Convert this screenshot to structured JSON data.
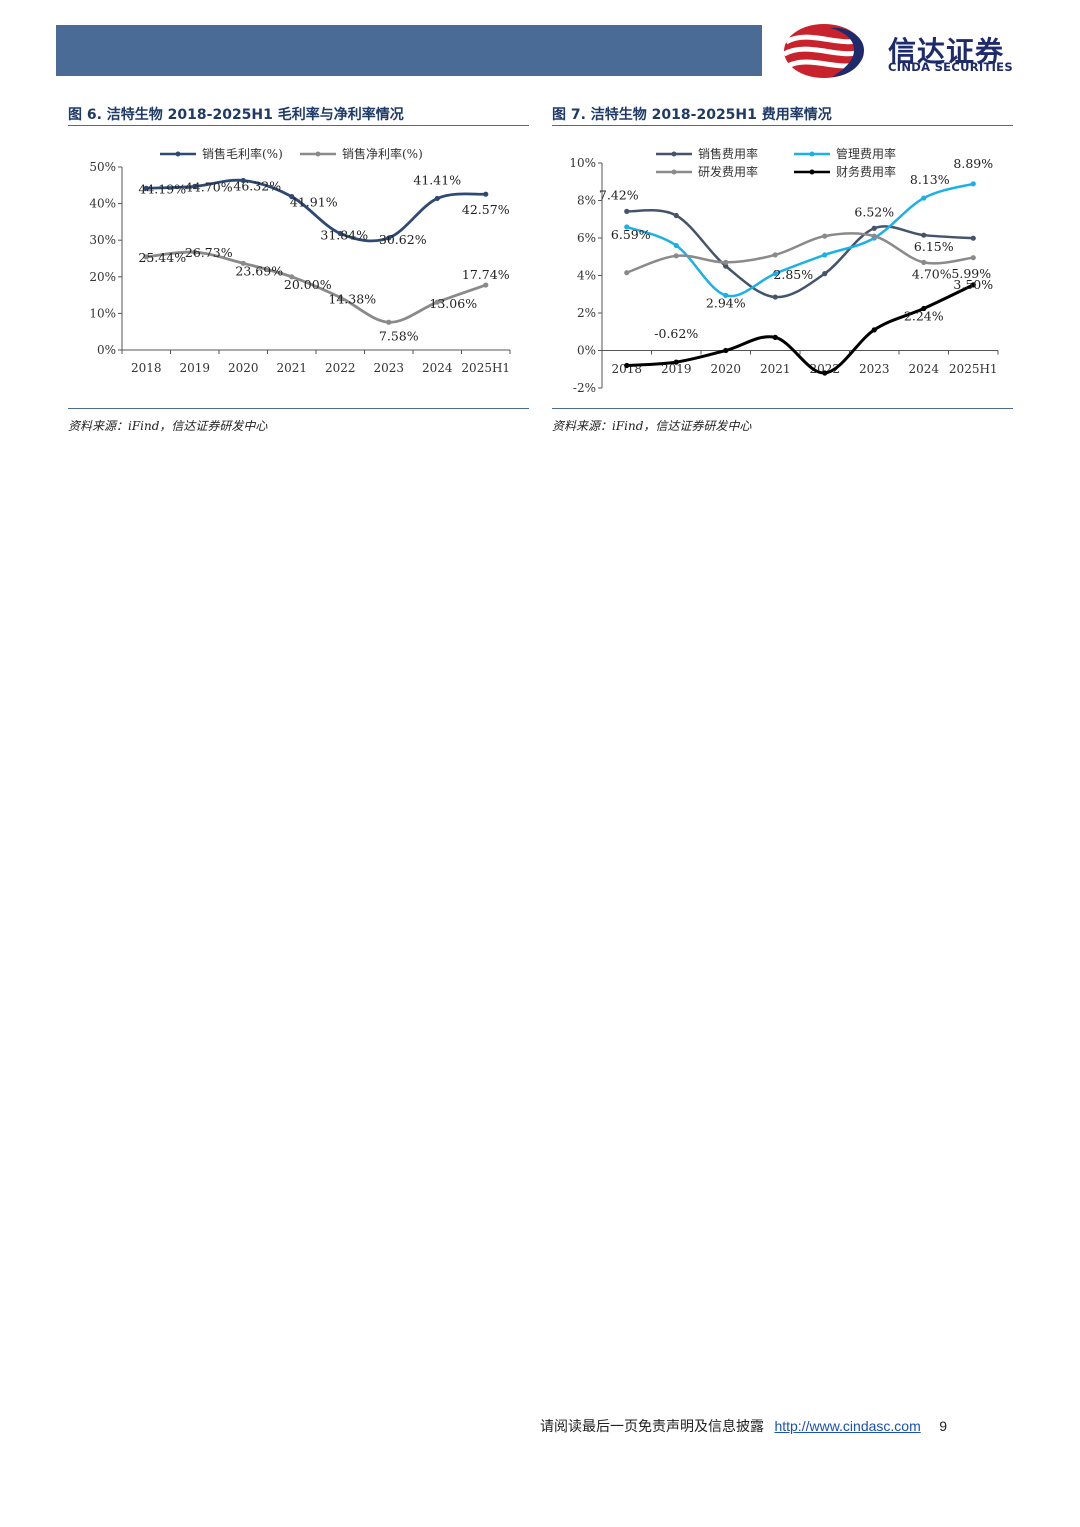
{
  "header": {
    "logo_cn": "信达证券",
    "logo_en": "CINDA SECURITIES",
    "bar_color": "#4a6b95"
  },
  "figures": [
    {
      "title": "图 6. 洁特生物 2018-2025H1 毛利率与净利率情况",
      "source": "资料来源：iFind，信达证券研发中心"
    },
    {
      "title": "图 7. 洁特生物 2018-2025H1 费用率情况",
      "source": "资料来源：iFind，信达证券研发中心"
    }
  ],
  "chart_data": [
    {
      "type": "line",
      "categories": [
        "2018",
        "2019",
        "2020",
        "2021",
        "2022",
        "2023",
        "2024",
        "2025H1"
      ],
      "ylim": [
        0,
        50
      ],
      "yticks": [
        "0%",
        "10%",
        "20%",
        "30%",
        "40%",
        "50%"
      ],
      "legend_position": "top",
      "series": [
        {
          "name": "销售毛利率(%)",
          "color": "#2e4a73",
          "values": [
            44.19,
            44.7,
            46.32,
            41.91,
            31.84,
            30.62,
            41.41,
            42.57
          ],
          "labels": [
            "44.19%",
            "44.70%",
            "46.32%",
            "41.91%",
            "31.84%",
            "30.62%",
            "41.41%",
            "42.57%"
          ]
        },
        {
          "name": "销售净利率(%)",
          "color": "#8a8a8a",
          "values": [
            25.44,
            26.73,
            23.69,
            20.0,
            14.38,
            7.58,
            13.06,
            17.74
          ],
          "labels": [
            "25.44%",
            "26.73%",
            "23.69%",
            "20.00%",
            "14.38%",
            "7.58%",
            "13.06%",
            "17.74%"
          ]
        }
      ]
    },
    {
      "type": "line",
      "categories": [
        "2018",
        "2019",
        "2020",
        "2021",
        "2022",
        "2023",
        "2024",
        "2025H1"
      ],
      "ylim": [
        -2,
        10
      ],
      "yticks": [
        "-2%",
        "0%",
        "2%",
        "4%",
        "6%",
        "8%",
        "10%"
      ],
      "legend_position": "top",
      "series": [
        {
          "name": "销售费用率",
          "color": "#44546a",
          "values": [
            7.42,
            7.2,
            4.5,
            2.85,
            4.1,
            6.52,
            6.15,
            5.99
          ]
        },
        {
          "name": "管理费用率",
          "color": "#1ab0e8",
          "values": [
            6.59,
            5.6,
            2.94,
            4.1,
            5.1,
            6.0,
            8.13,
            8.89
          ]
        },
        {
          "name": "研发费用率",
          "color": "#8a8a8a",
          "values": [
            4.15,
            5.05,
            4.7,
            5.1,
            6.1,
            6.1,
            4.7,
            4.95
          ]
        },
        {
          "name": "财务费用率",
          "color": "#000000",
          "values": [
            -0.8,
            -0.62,
            0.0,
            0.7,
            -1.2,
            1.1,
            2.24,
            3.5
          ]
        }
      ],
      "point_labels": [
        {
          "text": "7.42%",
          "series": 0,
          "index": 0
        },
        {
          "text": "6.59%",
          "series": 1,
          "index": 0
        },
        {
          "text": "-0.62%",
          "series": 3,
          "index": 1
        },
        {
          "text": "2.94%",
          "series": 1,
          "index": 2
        },
        {
          "text": "2.85%",
          "series": 0,
          "index": 3
        },
        {
          "text": "6.52%",
          "series": 0,
          "index": 5
        },
        {
          "text": "4.70%",
          "series": 2,
          "index": 6
        },
        {
          "text": "8.13%",
          "series": 1,
          "index": 6
        },
        {
          "text": "6.15%",
          "series": 0,
          "index": 6
        },
        {
          "text": "8.89%",
          "series": 1,
          "index": 7
        },
        {
          "text": "5.99%",
          "series": 0,
          "index": 7
        },
        {
          "text": "3.50%",
          "series": 3,
          "index": 7
        },
        {
          "text": "2.24%",
          "series": 3,
          "index": 6
        }
      ]
    }
  ],
  "footer": {
    "disclaimer": "请阅读最后一页免责声明及信息披露",
    "link": "http://www.cindasc.com",
    "page": "9"
  }
}
